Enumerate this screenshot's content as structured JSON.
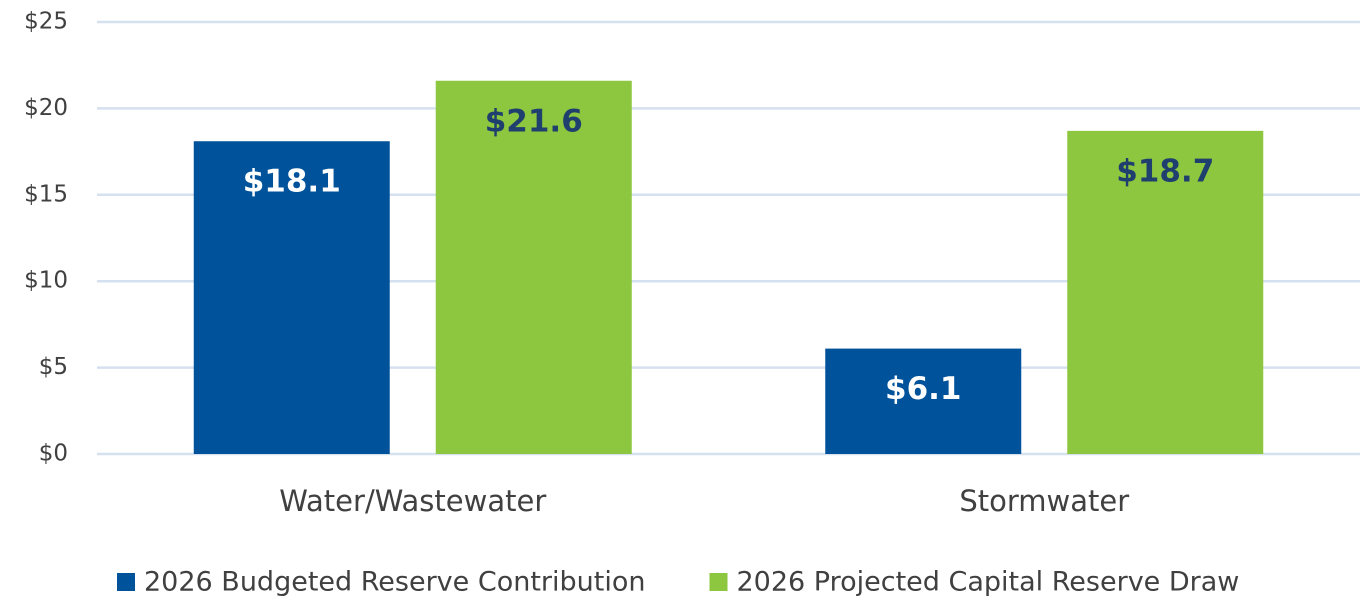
{
  "chart_data": {
    "type": "bar",
    "categories": [
      "Water/Wastewater",
      "Stormwater"
    ],
    "series": [
      {
        "name": "2026 Budgeted Reserve Contribution",
        "color": "#00539b",
        "label_color": "#ffffff",
        "values": [
          18.1,
          6.1
        ],
        "value_labels": [
          "$18.1",
          "$6.1"
        ]
      },
      {
        "name": "2026 Projected Capital Reserve Draw",
        "color": "#8dc63f",
        "label_color": "#1f3f6e",
        "values": [
          21.6,
          18.7
        ],
        "value_labels": [
          "$21.6",
          "$18.7"
        ]
      }
    ],
    "ylim": [
      0,
      25
    ],
    "yticks": [
      {
        "value": 0,
        "label": "$0"
      },
      {
        "value": 5,
        "label": "$5"
      },
      {
        "value": 10,
        "label": "$10"
      },
      {
        "value": 15,
        "label": "$15"
      },
      {
        "value": 20,
        "label": "$20"
      },
      {
        "value": 25,
        "label": "$25"
      }
    ],
    "grid": true,
    "legend": "bottom"
  }
}
